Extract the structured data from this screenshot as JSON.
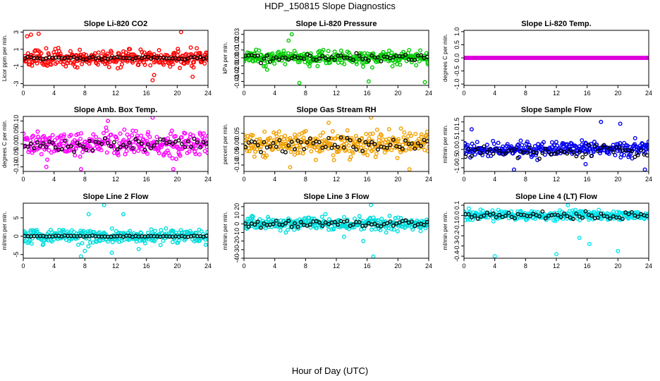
{
  "figure": {
    "title": "HDP_150815  Slope Diagnostics",
    "xlabel": "Hour of Day (UTC)"
  },
  "chart_data": [
    {
      "type": "scatter",
      "title": "Slope Li-820 CO2",
      "ylabel": "Licor ppm per min.",
      "color": "#ff0000",
      "xlim": [
        0,
        24
      ],
      "xticks": [
        0,
        4,
        8,
        12,
        16,
        20,
        24
      ],
      "ylim": [
        -3.2,
        3.2
      ],
      "yticks": [
        -3,
        -1,
        1,
        3
      ],
      "ytick_labels": [
        "-3",
        "-1",
        "1",
        "3"
      ],
      "spread": 0.8,
      "outliers": [
        [
          0.5,
          2.5
        ],
        [
          1,
          2.7
        ],
        [
          2,
          2.8
        ],
        [
          20.5,
          3.0
        ],
        [
          16.8,
          -2.6
        ],
        [
          22,
          -2.2
        ],
        [
          17,
          -2.0
        ]
      ],
      "black_spread": 0.15,
      "black_offset": 0,
      "seed": 11
    },
    {
      "type": "scatter",
      "title": "Slope Li-820 Pressure",
      "ylabel": "kPa per min.",
      "color": "#00cc00",
      "xlim": [
        0,
        24
      ],
      "xticks": [
        0,
        4,
        8,
        12,
        16,
        20,
        24
      ],
      "ylim": [
        -0.035,
        0.035
      ],
      "yticks": [
        -0.03,
        -0.02,
        -0.01,
        0,
        0.01,
        0.02,
        0.03
      ],
      "ytick_labels": [
        "-0.03",
        "-0.02",
        "-0.01",
        "0.00",
        "0.01",
        "0.02",
        "0.03"
      ],
      "spread": 0.007,
      "outliers": [
        [
          6.2,
          0.03
        ],
        [
          7.2,
          -0.032
        ],
        [
          23.5,
          -0.031
        ],
        [
          16.2,
          -0.03
        ],
        [
          3,
          -0.015
        ],
        [
          5.8,
          0.022
        ]
      ],
      "black_spread": 0.004,
      "black_offset": 0,
      "seed": 23
    },
    {
      "type": "scatter",
      "title": "Slope Li-820 Temp.",
      "ylabel": "degrees C per min.",
      "color": "#dd00dd",
      "xlim": [
        0,
        24
      ],
      "xticks": [
        0,
        4,
        8,
        12,
        16,
        20,
        24
      ],
      "ylim": [
        -1.05,
        1.05
      ],
      "yticks": [
        -1,
        -0.5,
        0,
        0.5,
        1
      ],
      "ytick_labels": [
        "-1.0",
        "-0.5",
        "0.0",
        "0.5",
        "1.0"
      ],
      "spread": 0.0,
      "outliers": [],
      "black_spread": 0.0,
      "black_offset": 0,
      "seed": 31
    },
    {
      "type": "scatter",
      "title": "Slope Amb. Box Temp.",
      "ylabel": "degrees C per min.",
      "color": "#ff00ff",
      "xlim": [
        0,
        24
      ],
      "xticks": [
        0,
        4,
        8,
        12,
        16,
        20,
        24
      ],
      "ylim": [
        -0.12,
        0.12
      ],
      "yticks": [
        -0.1,
        -0.05,
        0,
        0.05,
        0.1
      ],
      "ytick_labels": [
        "-0.10",
        "-0.05",
        "0.00",
        "0.05",
        "0.10"
      ],
      "spread": 0.045,
      "outliers": [
        [
          7.5,
          -0.11
        ],
        [
          16.8,
          0.115
        ],
        [
          19.5,
          -0.11
        ],
        [
          3,
          -0.1
        ],
        [
          11,
          0.1
        ]
      ],
      "black_spread": 0.025,
      "black_offset": 0,
      "seed": 41
    },
    {
      "type": "scatter",
      "title": "Slope Gas Stream RH",
      "ylabel": "percent per min.",
      "color": "#f0a000",
      "xlim": [
        0,
        24
      ],
      "xticks": [
        0,
        4,
        8,
        12,
        16,
        20,
        24
      ],
      "ylim": [
        -0.13,
        0.13
      ],
      "yticks": [
        -0.1,
        -0.05,
        0,
        0.05
      ],
      "ytick_labels": [
        "-0.10",
        "-0.05",
        "0.00",
        "0.05"
      ],
      "spread": 0.05,
      "outliers": [
        [
          16.5,
          0.125
        ],
        [
          21.5,
          -0.12
        ],
        [
          6,
          -0.11
        ],
        [
          11,
          0.1
        ]
      ],
      "black_spread": 0.03,
      "black_offset": 0,
      "seed": 53
    },
    {
      "type": "scatter",
      "title": "Slope Sample Flow",
      "ylabel": "ml/min per min.",
      "color": "#0000ee",
      "xlim": [
        0,
        24
      ],
      "xticks": [
        0,
        4,
        8,
        12,
        16,
        20,
        24
      ],
      "ylim": [
        -1.2,
        1.8
      ],
      "yticks": [
        -1,
        -0.5,
        0,
        0.5,
        1,
        1.5
      ],
      "ytick_labels": [
        "-1.0",
        "-0.5",
        "0.0",
        "0.5",
        "1.0",
        "1.5"
      ],
      "spread": 0.3,
      "outliers": [
        [
          1,
          1.1
        ],
        [
          6.5,
          -1.1
        ],
        [
          20.3,
          1.4
        ],
        [
          17.8,
          1.5
        ],
        [
          23.5,
          -1.1
        ],
        [
          15.8,
          -0.8
        ]
      ],
      "black_spread": 0.25,
      "black_offset": -0.1,
      "seed": 67
    },
    {
      "type": "scatter",
      "title": "Slope Line 2 Flow",
      "ylabel": "ml/min per min.",
      "color": "#00dddd",
      "xlim": [
        0,
        24
      ],
      "xticks": [
        0,
        4,
        8,
        12,
        16,
        20,
        24
      ],
      "ylim": [
        -6,
        9
      ],
      "yticks": [
        -5,
        0,
        5
      ],
      "ytick_labels": [
        "-5",
        "0",
        "5"
      ],
      "spread": 1.6,
      "outliers": [
        [
          7.5,
          -5.5
        ],
        [
          10.5,
          8.5
        ],
        [
          8,
          -4
        ],
        [
          13,
          6
        ],
        [
          8.5,
          6
        ],
        [
          11.5,
          -4.5
        ],
        [
          15,
          -3.5
        ]
      ],
      "black_spread": 0.15,
      "black_offset": 0,
      "seed": 79
    },
    {
      "type": "scatter",
      "title": "Slope Line 3 Flow",
      "ylabel": "ml/min per min.",
      "color": "#00dddd",
      "xlim": [
        0,
        24
      ],
      "xticks": [
        0,
        4,
        8,
        12,
        16,
        20,
        24
      ],
      "ylim": [
        -40,
        24
      ],
      "yticks": [
        -40,
        -30,
        -20,
        -10,
        0,
        10,
        20
      ],
      "ytick_labels": [
        "-40",
        "-30",
        "-20",
        "-10",
        "0",
        "10",
        "20"
      ],
      "spread": 6,
      "outliers": [
        [
          16.8,
          -38
        ],
        [
          16.5,
          22
        ],
        [
          15.5,
          -20
        ],
        [
          13,
          -15
        ]
      ],
      "black_spread": 4,
      "black_offset": 0,
      "seed": 83
    },
    {
      "type": "scatter",
      "title": "Slope Line 4 (LT) Flow",
      "ylabel": "ml/min per min.",
      "color": "#00e5ee",
      "xlim": [
        0,
        24
      ],
      "xticks": [
        0,
        4,
        8,
        12,
        16,
        20,
        24
      ],
      "ylim": [
        -0.42,
        0.12
      ],
      "yticks": [
        -0.4,
        -0.3,
        -0.2,
        -0.1,
        0,
        0.1
      ],
      "ytick_labels": [
        "-0.4",
        "-0.3",
        "-0.2",
        "-0.1",
        "0.0",
        "0.1"
      ],
      "spread": 0.04,
      "outliers": [
        [
          4,
          -0.4
        ],
        [
          12,
          -0.38
        ],
        [
          16.3,
          -0.28
        ],
        [
          20,
          -0.35
        ],
        [
          13.5,
          0.1
        ],
        [
          15,
          -0.22
        ]
      ],
      "black_spread": 0.03,
      "black_offset": 0,
      "seed": 97
    }
  ]
}
